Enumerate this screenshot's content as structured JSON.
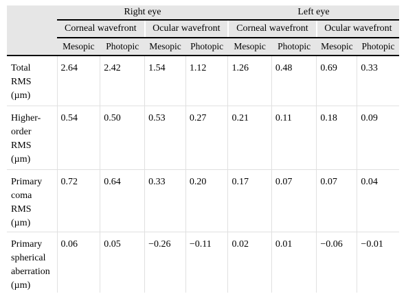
{
  "header": {
    "right_eye": "Right eye",
    "left_eye": "Left eye",
    "corneal": "Corneal wavefront",
    "ocular": "Ocular wavefront",
    "mesopic": "Mesopic",
    "photopic": "Photopic"
  },
  "rows": [
    {
      "label": [
        "Total",
        "RMS",
        "(µm)"
      ],
      "values": [
        "2.64",
        "2.42",
        "1.54",
        "1.12",
        "1.26",
        "0.48",
        "0.69",
        "0.33"
      ]
    },
    {
      "label": [
        "Higher-",
        "order",
        "RMS",
        "(µm)"
      ],
      "values": [
        "0.54",
        "0.50",
        "0.53",
        "0.27",
        "0.21",
        "0.11",
        "0.18",
        "0.09"
      ]
    },
    {
      "label": [
        "Primary",
        "coma",
        "RMS",
        "(µm)"
      ],
      "values": [
        "0.72",
        "0.64",
        "0.33",
        "0.20",
        "0.17",
        "0.07",
        "0.07",
        "0.04"
      ]
    },
    {
      "label": [
        "Primary",
        "spherical",
        "aberration",
        "(µm)"
      ],
      "values": [
        "0.06",
        "0.05",
        "−0.26",
        "−0.11",
        "0.02",
        "0.01",
        "−0.06",
        "−0.01"
      ]
    }
  ]
}
